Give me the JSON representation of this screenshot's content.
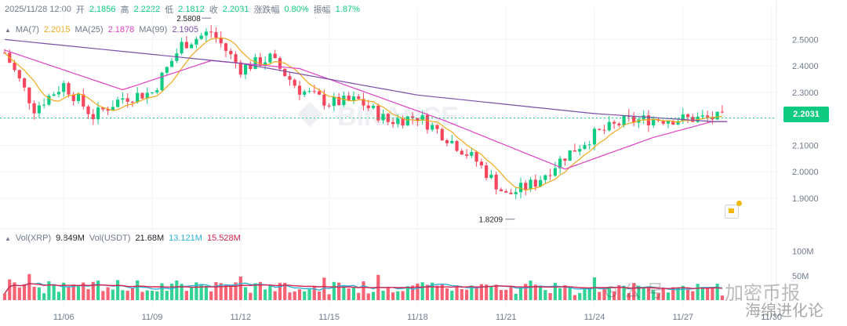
{
  "header": {
    "datetime": "2025/11/28 12:00",
    "open_label": "开",
    "open": "2.1856",
    "high_label": "高",
    "high": "2.2222",
    "low_label": "低",
    "low": "2.1812",
    "close_label": "收",
    "close": "2.2031",
    "change_label": "涨跌幅",
    "change": "0.80%",
    "amplitude_label": "振幅",
    "amplitude": "1.87%"
  },
  "ma": {
    "ma7_label": "MA(7)",
    "ma7": "2.2015",
    "ma25_label": "MA(25)",
    "ma25": "2.1878",
    "ma99_label": "MA(99)",
    "ma99": "2.1905"
  },
  "volume_header": {
    "vol_xrp_label": "Vol(XRP)",
    "vol_xrp": "9.849M",
    "vol_usdt_label": "Vol(USDT)",
    "vol_usdt": "21.68M",
    "ma_a": "13.121M",
    "ma_b": "15.528M"
  },
  "price_tag": "2.2031",
  "annotations": {
    "high_marker": "2.5808",
    "low_marker": "1.8209"
  },
  "watermark": {
    "center": "BINANCE",
    "brand_a": "加密币报",
    "brand_b": "海绵进化论"
  },
  "colors": {
    "up": "#0ecb81",
    "down": "#f6465d",
    "ma7": "#f0a91d",
    "ma25": "#e041c5",
    "ma99": "#7a4ea8",
    "vol_ma1": "#2bb3d6",
    "vol_ma2": "#d6234f"
  },
  "chart_data": {
    "type": "candlestick",
    "interval": "4h",
    "x_ticks": [
      "11/06",
      "11/09",
      "11/12",
      "11/15",
      "11/18",
      "11/21",
      "11/24",
      "11/27",
      "11/30"
    ],
    "y_ticks": [
      "2.5000",
      "2.4000",
      "2.3000",
      "2.2000",
      "2.1000",
      "2.0000",
      "1.9000"
    ],
    "ylim": [
      1.82,
      2.59
    ],
    "volume_ticks": [
      "100M",
      "50M"
    ],
    "volume_ylim": [
      0,
      120
    ],
    "key_points": [
      {
        "date": "11/04",
        "price": 2.45
      },
      {
        "date": "11/05",
        "price": 2.24
      },
      {
        "date": "11/06",
        "price": 2.33
      },
      {
        "date": "11/07",
        "price": 2.21
      },
      {
        "date": "11/08",
        "price": 2.28
      },
      {
        "date": "11/09",
        "price": 2.3
      },
      {
        "date": "11/10",
        "price": 2.48
      },
      {
        "date": "11/11",
        "price": 2.53
      },
      {
        "date": "11/12",
        "price": 2.39
      },
      {
        "date": "11/13",
        "price": 2.43
      },
      {
        "date": "11/14",
        "price": 2.31
      },
      {
        "date": "11/15",
        "price": 2.26
      },
      {
        "date": "11/16",
        "price": 2.27
      },
      {
        "date": "11/17",
        "price": 2.19
      },
      {
        "date": "11/18",
        "price": 2.21
      },
      {
        "date": "11/19",
        "price": 2.13
      },
      {
        "date": "11/20",
        "price": 2.04
      },
      {
        "date": "11/21",
        "price": 1.91
      },
      {
        "date": "11/22",
        "price": 1.96
      },
      {
        "date": "11/23",
        "price": 2.06
      },
      {
        "date": "11/24",
        "price": 2.14
      },
      {
        "date": "11/25",
        "price": 2.19
      },
      {
        "date": "11/26",
        "price": 2.2
      },
      {
        "date": "11/27",
        "price": 2.2
      },
      {
        "date": "11/28",
        "price": 2.2031
      }
    ],
    "ma99_points": [
      {
        "date": "11/04",
        "price": 2.5
      },
      {
        "date": "11/12",
        "price": 2.41
      },
      {
        "date": "11/18",
        "price": 2.29
      },
      {
        "date": "11/24",
        "price": 2.22
      },
      {
        "date": "11/28",
        "price": 2.19
      }
    ],
    "ma25_points": [
      {
        "date": "11/04",
        "price": 2.46
      },
      {
        "date": "11/08",
        "price": 2.31
      },
      {
        "date": "11/11",
        "price": 2.42
      },
      {
        "date": "11/14",
        "price": 2.39
      },
      {
        "date": "11/19",
        "price": 2.19
      },
      {
        "date": "11/23",
        "price": 2.01
      },
      {
        "date": "11/26",
        "price": 2.13
      },
      {
        "date": "11/28",
        "price": 2.19
      }
    ]
  }
}
